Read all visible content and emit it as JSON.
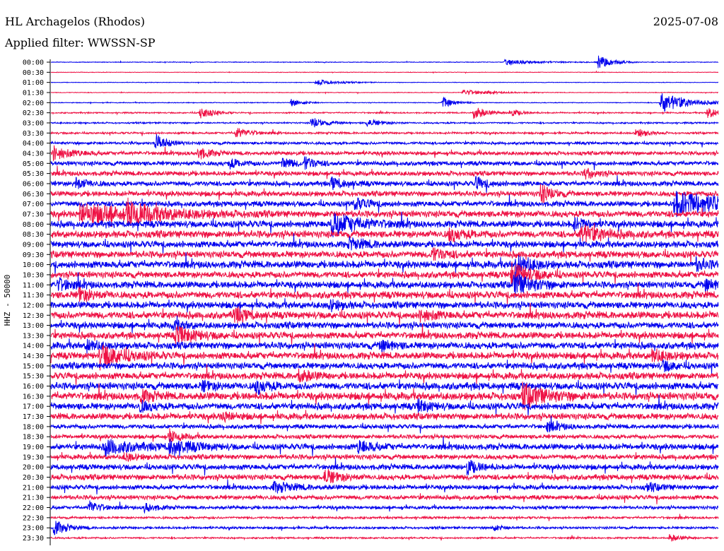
{
  "header": {
    "station": "HL Archagelos (Rhodos)",
    "date": "2025-07-08",
    "filter": "Applied filter: WWSSN-SP"
  },
  "colors": {
    "trace_a": "#0000ee",
    "trace_b": "#ee1144",
    "axis": "#000000"
  },
  "chart_data": {
    "type": "line",
    "title": "HL Archagelos (Rhodos)",
    "subtitle": "Applied filter: WWSSN-SP",
    "date": "2025-07-08",
    "ylabel": "HHZ - 50000",
    "xlabel": "",
    "row_labels": [
      "00:00",
      "00:30",
      "01:00",
      "01:30",
      "02:00",
      "02:30",
      "03:00",
      "03:30",
      "04:00",
      "04:30",
      "05:00",
      "05:30",
      "06:00",
      "06:30",
      "07:00",
      "07:30",
      "08:00",
      "08:30",
      "09:00",
      "09:30",
      "10:00",
      "10:30",
      "11:00",
      "11:30",
      "12:00",
      "12:30",
      "13:00",
      "13:30",
      "14:00",
      "14:30",
      "15:00",
      "15:30",
      "16:00",
      "16:30",
      "17:00",
      "17:30",
      "18:00",
      "18:30",
      "19:00",
      "19:30",
      "20:00",
      "20:30",
      "21:00",
      "21:30",
      "22:00",
      "22:30",
      "23:00",
      "23:30"
    ],
    "minutes_per_line": 30,
    "noise_levels": [
      0.06,
      0.05,
      0.05,
      0.06,
      0.07,
      0.12,
      0.14,
      0.18,
      0.25,
      0.35,
      0.4,
      0.42,
      0.45,
      0.48,
      0.5,
      0.6,
      0.62,
      0.65,
      0.6,
      0.62,
      0.66,
      0.6,
      0.62,
      0.65,
      0.62,
      0.66,
      0.6,
      0.62,
      0.63,
      0.64,
      0.6,
      0.62,
      0.66,
      0.7,
      0.62,
      0.58,
      0.4,
      0.38,
      0.55,
      0.45,
      0.5,
      0.5,
      0.42,
      0.4,
      0.3,
      0.2,
      0.22,
      0.15
    ],
    "events": [
      {
        "row": 0,
        "minute": 24.6,
        "amplitude": 1.5,
        "duration": 0.6
      },
      {
        "row": 0,
        "minute": 20.4,
        "amplitude": 0.5,
        "duration": 1.5
      },
      {
        "row": 2,
        "minute": 11.9,
        "amplitude": 0.6,
        "duration": 1.0
      },
      {
        "row": 3,
        "minute": 18.5,
        "amplitude": 0.6,
        "duration": 1.2
      },
      {
        "row": 4,
        "minute": 27.4,
        "amplitude": 2.2,
        "duration": 1.2
      },
      {
        "row": 4,
        "minute": 10.8,
        "amplitude": 0.8,
        "duration": 0.5
      },
      {
        "row": 4,
        "minute": 17.6,
        "amplitude": 1.2,
        "duration": 0.5
      },
      {
        "row": 5,
        "minute": 6.7,
        "amplitude": 1.4,
        "duration": 0.5
      },
      {
        "row": 5,
        "minute": 19.0,
        "amplitude": 1.6,
        "duration": 0.5
      },
      {
        "row": 5,
        "minute": 20.6,
        "amplitude": 0.9,
        "duration": 0.5
      },
      {
        "row": 5,
        "minute": 29.5,
        "amplitude": 1.2,
        "duration": 0.5
      },
      {
        "row": 6,
        "minute": 11.7,
        "amplitude": 1.2,
        "duration": 0.6
      },
      {
        "row": 6,
        "minute": 14.2,
        "amplitude": 0.8,
        "duration": 0.6
      },
      {
        "row": 7,
        "minute": 8.3,
        "amplitude": 1.1,
        "duration": 0.7
      },
      {
        "row": 7,
        "minute": 26.3,
        "amplitude": 1.0,
        "duration": 0.5
      },
      {
        "row": 8,
        "minute": 4.7,
        "amplitude": 1.8,
        "duration": 0.5
      },
      {
        "row": 9,
        "minute": 0.1,
        "amplitude": 1.4,
        "duration": 0.8
      },
      {
        "row": 9,
        "minute": 6.6,
        "amplitude": 1.3,
        "duration": 0.5
      },
      {
        "row": 10,
        "minute": 10.4,
        "amplitude": 1.2,
        "duration": 0.5
      },
      {
        "row": 10,
        "minute": 11.4,
        "amplitude": 1.2,
        "duration": 0.5
      },
      {
        "row": 10,
        "minute": 8.0,
        "amplitude": 1.0,
        "duration": 0.5
      },
      {
        "row": 11,
        "minute": 24.0,
        "amplitude": 1.1,
        "duration": 0.5
      },
      {
        "row": 12,
        "minute": 1.1,
        "amplitude": 1.2,
        "duration": 0.5
      },
      {
        "row": 12,
        "minute": 12.6,
        "amplitude": 1.2,
        "duration": 0.6
      },
      {
        "row": 12,
        "minute": 19.1,
        "amplitude": 1.2,
        "duration": 0.5
      },
      {
        "row": 13,
        "minute": 22.0,
        "amplitude": 2.0,
        "duration": 0.5
      },
      {
        "row": 14,
        "minute": 28.0,
        "amplitude": 2.5,
        "duration": 3.0
      },
      {
        "row": 14,
        "minute": 13.6,
        "amplitude": 1.2,
        "duration": 0.6
      },
      {
        "row": 15,
        "minute": 1.3,
        "amplitude": 2.0,
        "duration": 2.8
      },
      {
        "row": 15,
        "minute": 3.4,
        "amplitude": 1.6,
        "duration": 1.2
      },
      {
        "row": 16,
        "minute": 12.6,
        "amplitude": 2.4,
        "duration": 1.2
      },
      {
        "row": 16,
        "minute": 23.5,
        "amplitude": 1.2,
        "duration": 0.5
      },
      {
        "row": 17,
        "minute": 17.9,
        "amplitude": 1.4,
        "duration": 0.6
      },
      {
        "row": 17,
        "minute": 23.8,
        "amplitude": 1.8,
        "duration": 1.0
      },
      {
        "row": 18,
        "minute": 13.4,
        "amplitude": 1.0,
        "duration": 0.8
      },
      {
        "row": 19,
        "minute": 17.1,
        "amplitude": 1.3,
        "duration": 0.6
      },
      {
        "row": 20,
        "minute": 20.9,
        "amplitude": 2.2,
        "duration": 0.6
      },
      {
        "row": 20,
        "minute": 29.0,
        "amplitude": 1.2,
        "duration": 0.5
      },
      {
        "row": 21,
        "minute": 20.7,
        "amplitude": 2.6,
        "duration": 0.8
      },
      {
        "row": 22,
        "minute": 0.3,
        "amplitude": 1.2,
        "duration": 0.6
      },
      {
        "row": 22,
        "minute": 20.8,
        "amplitude": 2.4,
        "duration": 0.8
      },
      {
        "row": 22,
        "minute": 29.4,
        "amplitude": 1.2,
        "duration": 0.5
      },
      {
        "row": 23,
        "minute": 1.2,
        "amplitude": 1.4,
        "duration": 0.6
      },
      {
        "row": 24,
        "minute": 12.5,
        "amplitude": 1.0,
        "duration": 0.5
      },
      {
        "row": 25,
        "minute": 8.2,
        "amplitude": 1.6,
        "duration": 0.6
      },
      {
        "row": 25,
        "minute": 16.6,
        "amplitude": 1.2,
        "duration": 0.6
      },
      {
        "row": 26,
        "minute": 5.5,
        "amplitude": 1.0,
        "duration": 0.5
      },
      {
        "row": 27,
        "minute": 5.6,
        "amplitude": 1.8,
        "duration": 0.8
      },
      {
        "row": 28,
        "minute": 1.6,
        "amplitude": 1.2,
        "duration": 0.5
      },
      {
        "row": 28,
        "minute": 14.8,
        "amplitude": 1.2,
        "duration": 0.5
      },
      {
        "row": 29,
        "minute": 2.2,
        "amplitude": 2.4,
        "duration": 1.0
      },
      {
        "row": 29,
        "minute": 27.0,
        "amplitude": 1.3,
        "duration": 0.6
      },
      {
        "row": 30,
        "minute": 27.5,
        "amplitude": 1.0,
        "duration": 0.5
      },
      {
        "row": 31,
        "minute": 11.1,
        "amplitude": 1.5,
        "duration": 0.5
      },
      {
        "row": 32,
        "minute": 6.8,
        "amplitude": 1.0,
        "duration": 0.5
      },
      {
        "row": 32,
        "minute": 9.2,
        "amplitude": 1.6,
        "duration": 0.5
      },
      {
        "row": 33,
        "minute": 21.2,
        "amplitude": 2.4,
        "duration": 1.0
      },
      {
        "row": 33,
        "minute": 4.0,
        "amplitude": 1.2,
        "duration": 0.5
      },
      {
        "row": 34,
        "minute": 4.0,
        "amplitude": 1.0,
        "duration": 0.5
      },
      {
        "row": 34,
        "minute": 16.5,
        "amplitude": 1.2,
        "duration": 0.5
      },
      {
        "row": 35,
        "minute": 7.7,
        "amplitude": 0.9,
        "duration": 0.5
      },
      {
        "row": 36,
        "minute": 22.3,
        "amplitude": 1.0,
        "duration": 0.6
      },
      {
        "row": 37,
        "minute": 5.3,
        "amplitude": 1.2,
        "duration": 0.5
      },
      {
        "row": 38,
        "minute": 2.4,
        "amplitude": 1.6,
        "duration": 1.2
      },
      {
        "row": 38,
        "minute": 5.3,
        "amplitude": 1.6,
        "duration": 1.0
      },
      {
        "row": 38,
        "minute": 13.8,
        "amplitude": 1.4,
        "duration": 0.6
      },
      {
        "row": 39,
        "minute": 3.3,
        "amplitude": 0.8,
        "duration": 0.5
      },
      {
        "row": 40,
        "minute": 18.7,
        "amplitude": 1.5,
        "duration": 0.5
      },
      {
        "row": 41,
        "minute": 12.3,
        "amplitude": 1.6,
        "duration": 0.6
      },
      {
        "row": 42,
        "minute": 10.0,
        "amplitude": 1.0,
        "duration": 1.0
      },
      {
        "row": 42,
        "minute": 26.8,
        "amplitude": 0.8,
        "duration": 0.6
      },
      {
        "row": 44,
        "minute": 1.7,
        "amplitude": 1.4,
        "duration": 0.5
      },
      {
        "row": 44,
        "minute": 4.2,
        "amplitude": 1.0,
        "duration": 0.5
      },
      {
        "row": 46,
        "minute": 0.1,
        "amplitude": 1.6,
        "duration": 0.6
      },
      {
        "row": 46,
        "minute": 19.8,
        "amplitude": 0.7,
        "duration": 0.5
      },
      {
        "row": 47,
        "minute": 27.8,
        "amplitude": 0.8,
        "duration": 0.5
      }
    ]
  }
}
